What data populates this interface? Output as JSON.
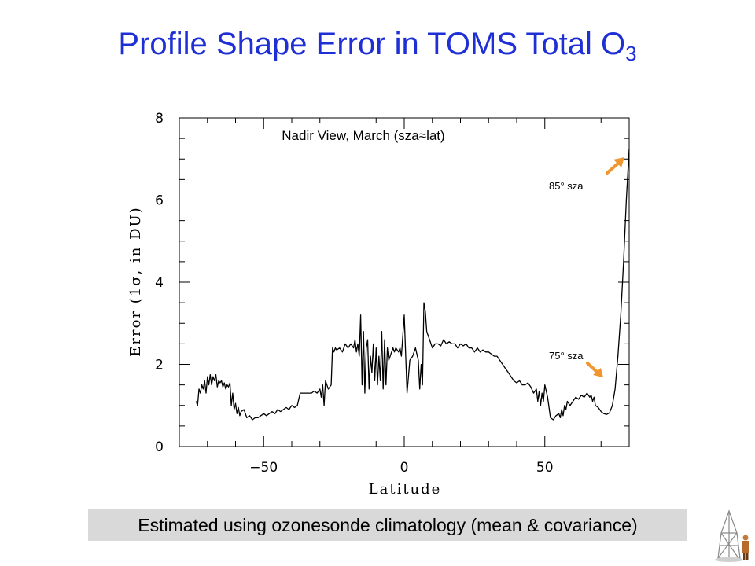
{
  "slide": {
    "title_main": "Profile Shape Error in TOMS Total O",
    "title_sub": "3",
    "footer": "Estimated using ozonesonde climatology (mean & covariance)"
  },
  "colors": {
    "title": "#1f2fd6",
    "arrow": "#f0962e",
    "line": "#000000",
    "footer_bg": "#d9d9d9"
  },
  "chart_data": {
    "type": "line",
    "title": "Nadir View, March (sza≈lat)",
    "xlabel": "Latitude",
    "ylabel": "Error (1σ, in DU)",
    "xlim": [
      -80,
      80
    ],
    "ylim": [
      0,
      8
    ],
    "xticks": [
      -50,
      0,
      50
    ],
    "yticks": [
      0,
      2,
      4,
      6,
      8
    ],
    "xtick_labels": [
      "−50",
      "0",
      "50"
    ],
    "ytick_labels": [
      "0",
      "2",
      "4",
      "6",
      "8"
    ],
    "grid": false,
    "annotations": [
      {
        "text": "85° sza",
        "x": 80,
        "y": 7.0
      },
      {
        "text": "75° sza",
        "x": 70,
        "y": 1.45
      }
    ],
    "series": [
      {
        "x": [
          -74,
          -73.5,
          -73,
          -72.5,
          -72,
          -71.5,
          -71,
          -70.5,
          -70,
          -69.5,
          -69,
          -68.5,
          -68,
          -67.5,
          -67,
          -66.5,
          -66,
          -65.5,
          -65,
          -64.5,
          -64,
          -63.5,
          -63,
          -62.5,
          -62,
          -61.5,
          -61,
          -60.5,
          -60,
          -59.5,
          -59,
          -58.5,
          -58,
          -57,
          -56,
          -55,
          -54,
          -53,
          -52,
          -51,
          -50,
          -49,
          -48,
          -47,
          -46,
          -45,
          -44,
          -43,
          -42,
          -41,
          -40,
          -39,
          -38,
          -37,
          -36,
          -35,
          -34,
          -33,
          -32,
          -31,
          -30,
          -29.5,
          -29,
          -28.5,
          -28,
          -27,
          -26,
          -25.5,
          -25,
          -24.5,
          -24,
          -23,
          -22,
          -21,
          -20,
          -19,
          -18,
          -17.5,
          -17,
          -16.5,
          -16,
          -15.5,
          -15,
          -14.5,
          -14,
          -13.5,
          -13,
          -12.5,
          -12,
          -11.5,
          -11,
          -10.5,
          -10,
          -9.5,
          -9,
          -8.5,
          -8,
          -7.5,
          -7,
          -6.5,
          -6,
          -5.5,
          -5,
          -4.5,
          -4,
          -3.5,
          -3,
          -2.5,
          -2,
          -1.5,
          -1,
          0,
          1,
          2,
          3,
          4,
          5,
          5.5,
          6,
          6.5,
          7,
          7.5,
          8,
          9,
          10,
          11,
          12,
          13,
          14,
          15,
          16,
          17,
          18,
          19,
          20,
          21,
          22,
          23,
          24,
          25,
          26,
          27,
          28,
          29,
          30,
          31,
          32,
          33,
          34,
          35,
          36,
          37,
          38,
          39,
          40,
          41,
          42,
          43,
          44,
          45,
          46,
          47,
          47.5,
          48,
          48.5,
          49,
          49.5,
          50,
          51,
          52,
          53,
          54,
          55,
          55.5,
          56,
          56.5,
          57,
          57.5,
          58,
          59,
          60,
          61,
          62,
          63,
          64,
          65,
          66,
          66.5,
          67,
          67.5,
          68,
          69,
          70,
          71,
          72,
          73,
          74,
          75,
          76,
          77,
          78,
          79,
          80
        ],
        "y": [
          1.1,
          1.0,
          1.4,
          1.3,
          1.5,
          1.4,
          1.6,
          1.3,
          1.7,
          1.5,
          1.75,
          1.5,
          1.7,
          1.6,
          1.75,
          1.45,
          1.6,
          1.55,
          1.6,
          1.45,
          1.55,
          1.4,
          1.5,
          1.45,
          1.55,
          1.0,
          1.3,
          0.9,
          1.05,
          0.8,
          0.95,
          0.75,
          0.85,
          0.9,
          0.7,
          0.75,
          0.65,
          0.7,
          0.7,
          0.75,
          0.8,
          0.75,
          0.8,
          0.85,
          0.8,
          0.9,
          0.85,
          0.9,
          0.95,
          0.9,
          1.0,
          0.95,
          1.0,
          1.3,
          1.3,
          1.3,
          1.3,
          1.3,
          1.35,
          1.3,
          1.4,
          1.2,
          1.5,
          1.0,
          1.6,
          1.4,
          1.5,
          2.4,
          2.3,
          2.4,
          2.35,
          2.4,
          2.3,
          2.5,
          2.4,
          2.5,
          2.4,
          2.6,
          2.3,
          2.5,
          2.2,
          3.2,
          1.5,
          2.8,
          1.3,
          2.4,
          2.6,
          1.4,
          2.2,
          1.8,
          2.5,
          1.6,
          2.4,
          1.5,
          2.2,
          1.6,
          2.8,
          1.4,
          2.6,
          1.5,
          2.4,
          2.1,
          2.2,
          2.3,
          2.4,
          2.3,
          2.4,
          2.35,
          2.3,
          2.4,
          2.2,
          3.2,
          1.3,
          2.1,
          2.2,
          2.4,
          2.1,
          1.4,
          2.0,
          1.5,
          3.5,
          3.3,
          2.8,
          2.6,
          2.4,
          2.5,
          2.5,
          2.45,
          2.6,
          2.5,
          2.55,
          2.5,
          2.5,
          2.4,
          2.5,
          2.45,
          2.5,
          2.4,
          2.4,
          2.3,
          2.4,
          2.3,
          2.35,
          2.3,
          2.3,
          2.25,
          2.2,
          2.2,
          2.1,
          2.0,
          1.9,
          1.8,
          1.7,
          1.6,
          1.55,
          1.6,
          1.5,
          1.5,
          1.55,
          1.45,
          1.3,
          1.4,
          1.1,
          1.35,
          1.0,
          1.3,
          1.1,
          1.5,
          1.2,
          0.7,
          0.65,
          0.75,
          0.8,
          0.7,
          0.9,
          0.75,
          1.0,
          0.9,
          1.1,
          1.0,
          1.1,
          1.2,
          1.15,
          1.25,
          1.2,
          1.3,
          1.2,
          1.25,
          1.1,
          1.2,
          1.0,
          0.95,
          0.85,
          0.8,
          0.78,
          0.82,
          1.0,
          1.4,
          2.2,
          3.2,
          4.5,
          6.0,
          7.25
        ]
      }
    ]
  }
}
